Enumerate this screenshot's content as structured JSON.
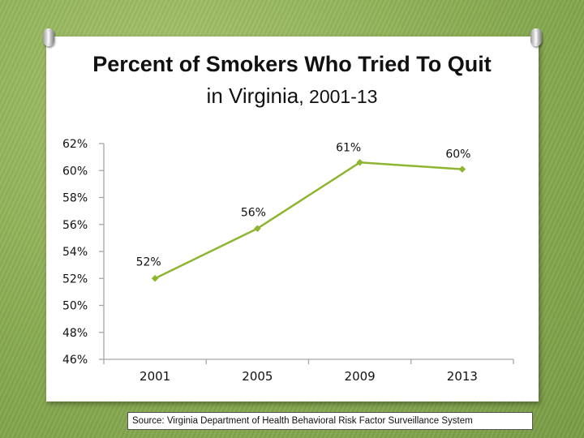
{
  "title_line1": "Percent of Smokers Who Tried To Quit",
  "title_line2_main": "in Virginia",
  "title_line2_years": ", 2001-13",
  "source": "Source: Virginia Department of Health Behavioral Risk Factor Surveillance System",
  "chart_data": {
    "type": "line",
    "title": "Percent of Smokers Who Tried To Quit in Virginia, 2001-13",
    "categories": [
      "2001",
      "2005",
      "2009",
      "2013"
    ],
    "series": [
      {
        "values": [
          52,
          55.7,
          60.6,
          60.1
        ],
        "labels": [
          "52%",
          "56%",
          "61%",
          "60%"
        ],
        "color": "#8db52f"
      }
    ],
    "yticks": [
      "62%",
      "60%",
      "58%",
      "56%",
      "54%",
      "52%",
      "50%",
      "48%",
      "46%"
    ],
    "ytick_values": [
      62,
      60,
      58,
      56,
      54,
      52,
      50,
      48,
      46
    ],
    "ylim": [
      46,
      62
    ],
    "grid": false,
    "axis_color": "#a6a6a6"
  }
}
